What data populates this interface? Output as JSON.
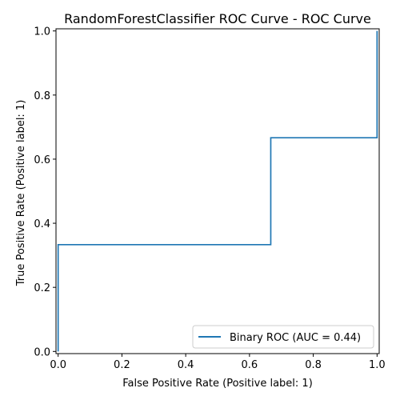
{
  "chart_data": {
    "type": "line",
    "title": "RandomForestClassifier ROC Curve - ROC Curve",
    "xlabel": "False Positive Rate (Positive label: 1)",
    "ylabel": "True Positive Rate (Positive label: 1)",
    "xlim": [
      -0.0067,
      1.0067
    ],
    "ylim": [
      -0.0067,
      1.0067
    ],
    "xticks": [
      "0.0",
      "0.2",
      "0.4",
      "0.6",
      "0.8",
      "1.0"
    ],
    "yticks": [
      "0.0",
      "0.2",
      "0.4",
      "0.6",
      "0.8",
      "1.0"
    ],
    "grid": false,
    "legend_position": "lower-right",
    "series": [
      {
        "name": "Binary ROC (AUC = 0.44)",
        "color": "#1f77b4",
        "drawstyle": "steps-post",
        "x": [
          0.0,
          0.0,
          0.6667,
          0.6667,
          1.0,
          1.0
        ],
        "y": [
          0.0,
          0.3333,
          0.3333,
          0.6667,
          0.6667,
          1.0
        ]
      }
    ]
  }
}
